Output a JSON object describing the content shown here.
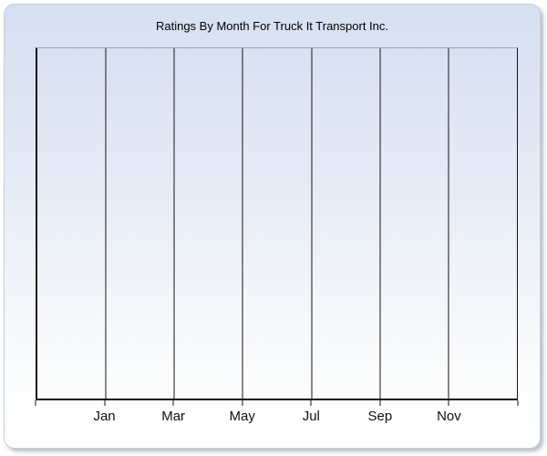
{
  "panel": {
    "title": "Ratings By Month For Truck It Transport Inc."
  },
  "colors": {
    "panel_border": "#c6cfdf",
    "panel_top": "#d6e0f1",
    "panel_bottom": "#ffffff",
    "grid_line": "#141414",
    "plot_top_border": "#98a4b6",
    "title_text": "#000000",
    "label_text": "#111111"
  },
  "chart_data": {
    "type": "line",
    "title": "Ratings By Month For Truck It Transport Inc.",
    "categories": [
      "Jan",
      "Mar",
      "May",
      "Jul",
      "Sep",
      "Nov"
    ],
    "series": [],
    "xlabel": "",
    "ylabel": "",
    "legend": "none",
    "grid": "vertical",
    "x_intervals": 7,
    "x_tick_count": 8
  }
}
